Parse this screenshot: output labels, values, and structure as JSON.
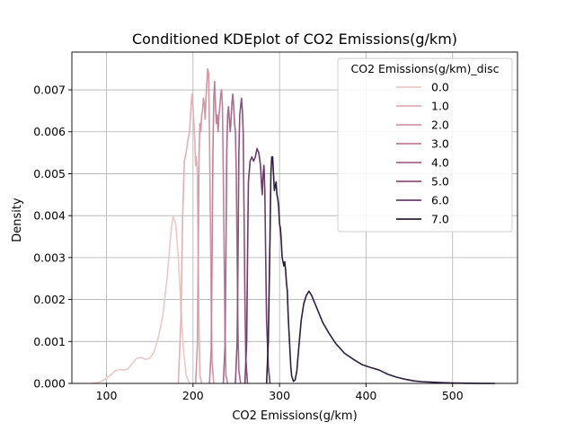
{
  "chart_data": {
    "type": "line",
    "title": "Conditioned KDEplot of CO2 Emissions(g/km)",
    "xlabel": "CO2 Emissions(g/km)",
    "ylabel": "Density",
    "xlim": [
      60,
      575
    ],
    "ylim": [
      0,
      0.0079
    ],
    "xticks": [
      100,
      200,
      300,
      400,
      500
    ],
    "xtick_labels": [
      "100",
      "200",
      "300",
      "400",
      "500"
    ],
    "yticks": [
      0,
      0.001,
      0.002,
      0.003,
      0.004,
      0.005,
      0.006,
      0.007
    ],
    "ytick_labels": [
      "0.000",
      "0.001",
      "0.002",
      "0.003",
      "0.004",
      "0.005",
      "0.006",
      "0.007"
    ],
    "grid": true,
    "legend": {
      "title": "CO2 Emissions(g/km)_disc",
      "placement": "top-right"
    },
    "series": [
      {
        "name": "0.0",
        "color": "#eccac8",
        "points": [
          [
            83,
            0
          ],
          [
            90,
            2e-05
          ],
          [
            95,
            6e-05
          ],
          [
            100,
            0.00012
          ],
          [
            105,
            0.0002
          ],
          [
            110,
            0.0003
          ],
          [
            115,
            0.00033
          ],
          [
            120,
            0.00032
          ],
          [
            125,
            0.00035
          ],
          [
            130,
            0.00048
          ],
          [
            135,
            0.0006
          ],
          [
            140,
            0.00062
          ],
          [
            145,
            0.00057
          ],
          [
            150,
            0.0006
          ],
          [
            155,
            0.00075
          ],
          [
            160,
            0.0011
          ],
          [
            165,
            0.0016
          ],
          [
            170,
            0.0025
          ],
          [
            174,
            0.0035
          ],
          [
            177,
            0.004
          ],
          [
            180,
            0.0038
          ],
          [
            183,
            0.003
          ],
          [
            186,
            0.0018
          ],
          [
            189,
            0.0008
          ],
          [
            192,
            0.0002
          ],
          [
            196,
            0
          ]
        ]
      },
      {
        "name": "1.0",
        "color": "#e1b0b4",
        "points": [
          [
            183,
            0
          ],
          [
            186,
            0.0015
          ],
          [
            188,
            0.004
          ],
          [
            190,
            0.0053
          ],
          [
            192,
            0.0055
          ],
          [
            194,
            0.0058
          ],
          [
            196,
            0.006
          ],
          [
            198,
            0.0067
          ],
          [
            199,
            0.0069
          ],
          [
            200,
            0.0066
          ],
          [
            202,
            0.0058
          ],
          [
            203,
            0.0052
          ],
          [
            204,
            0.0054
          ],
          [
            205,
            0.005
          ],
          [
            206,
            0.003
          ],
          [
            207,
            0.0012
          ],
          [
            208,
            0.0002
          ],
          [
            210,
            0
          ]
        ]
      },
      {
        "name": "2.0",
        "color": "#d498a4",
        "points": [
          [
            203,
            0
          ],
          [
            205,
            0.0009
          ],
          [
            206,
            0.003
          ],
          [
            207,
            0.0055
          ],
          [
            208,
            0.0062
          ],
          [
            209,
            0.006
          ],
          [
            210,
            0.0064
          ],
          [
            211,
            0.0065
          ],
          [
            212,
            0.0068
          ],
          [
            213,
            0.0067
          ],
          [
            214,
            0.0063
          ],
          [
            215,
            0.0068
          ],
          [
            216,
            0.0072
          ],
          [
            217,
            0.0075
          ],
          [
            218,
            0.0074
          ],
          [
            219,
            0.006
          ],
          [
            220,
            0.004
          ],
          [
            221,
            0.002
          ],
          [
            222,
            0.0005
          ],
          [
            224,
            0
          ]
        ]
      },
      {
        "name": "3.0",
        "color": "#c0819a",
        "points": [
          [
            219,
            0
          ],
          [
            221,
            0.0008
          ],
          [
            222,
            0.003
          ],
          [
            223,
            0.0055
          ],
          [
            224,
            0.0068
          ],
          [
            225,
            0.0072
          ],
          [
            226,
            0.0066
          ],
          [
            227,
            0.0062
          ],
          [
            228,
            0.0064
          ],
          [
            229,
            0.006
          ],
          [
            230,
            0.0064
          ],
          [
            231,
            0.0066
          ],
          [
            232,
            0.0069
          ],
          [
            233,
            0.007
          ],
          [
            234,
            0.0066
          ],
          [
            235,
            0.005
          ],
          [
            236,
            0.003
          ],
          [
            237,
            0.0012
          ],
          [
            238,
            0.0002
          ],
          [
            240,
            0
          ]
        ]
      },
      {
        "name": "4.0",
        "color": "#a7688d",
        "points": [
          [
            235,
            0
          ],
          [
            237,
            0.0009
          ],
          [
            238,
            0.003
          ],
          [
            239,
            0.0055
          ],
          [
            240,
            0.0064
          ],
          [
            241,
            0.0066
          ],
          [
            242,
            0.0063
          ],
          [
            243,
            0.006
          ],
          [
            244,
            0.0063
          ],
          [
            245,
            0.0067
          ],
          [
            246,
            0.0069
          ],
          [
            247,
            0.0066
          ],
          [
            248,
            0.0062
          ],
          [
            249,
            0.006
          ],
          [
            250,
            0.005
          ],
          [
            251,
            0.003
          ],
          [
            252,
            0.0012
          ],
          [
            253,
            0.0003
          ],
          [
            255,
            0
          ]
        ]
      },
      {
        "name": "5.0",
        "color": "#8c517d",
        "points": [
          [
            249,
            0
          ],
          [
            251,
            0.001
          ],
          [
            252,
            0.003
          ],
          [
            253,
            0.0055
          ],
          [
            254,
            0.0064
          ],
          [
            255,
            0.0066
          ],
          [
            256,
            0.0068
          ],
          [
            257,
            0.0065
          ],
          [
            258,
            0.006
          ],
          [
            259,
            0.004
          ],
          [
            260,
            0.002
          ],
          [
            261,
            0.0006
          ],
          [
            263,
            0
          ]
        ]
      },
      {
        "name": "6.0",
        "color": "#6c3d6b",
        "points": [
          [
            260,
            0
          ],
          [
            262,
            0.001
          ],
          [
            263,
            0.003
          ],
          [
            264,
            0.0048
          ],
          [
            266,
            0.0053
          ],
          [
            268,
            0.0054
          ],
          [
            270,
            0.0053
          ],
          [
            272,
            0.0054
          ],
          [
            274,
            0.0056
          ],
          [
            276,
            0.0055
          ],
          [
            278,
            0.0052
          ],
          [
            279,
            0.0048
          ],
          [
            280,
            0.0045
          ],
          [
            281,
            0.005
          ],
          [
            282,
            0.0052
          ],
          [
            283,
            0.0046
          ],
          [
            284,
            0.003
          ],
          [
            285,
            0.0015
          ],
          [
            287,
            0.0004
          ],
          [
            289,
            0
          ]
        ]
      },
      {
        "name": "7.0",
        "color": "#2d1e3e",
        "points": [
          [
            285,
            0
          ],
          [
            287,
            0.001
          ],
          [
            289,
            0.0035
          ],
          [
            290,
            0.005
          ],
          [
            291,
            0.0054
          ],
          [
            292,
            0.0054
          ],
          [
            293,
            0.005
          ],
          [
            294,
            0.0046
          ],
          [
            295,
            0.0047
          ],
          [
            296,
            0.0048
          ],
          [
            297,
            0.0045
          ],
          [
            298,
            0.0044
          ],
          [
            299,
            0.0042
          ],
          [
            300,
            0.0038
          ],
          [
            301,
            0.0037
          ],
          [
            302,
            0.0034
          ],
          [
            303,
            0.003
          ],
          [
            305,
            0.0028
          ],
          [
            306,
            0.0029
          ],
          [
            307,
            0.0027
          ],
          [
            308,
            0.0024
          ],
          [
            309,
            0.0022
          ],
          [
            310,
            0.0016
          ],
          [
            311,
            0.0012
          ],
          [
            312,
            0.0008
          ],
          [
            313,
            0.0004
          ],
          [
            314,
            0.00018
          ],
          [
            316,
            5e-05
          ],
          [
            318,
            8e-05
          ],
          [
            320,
            0.0003
          ],
          [
            322,
            0.0008
          ],
          [
            325,
            0.0015
          ],
          [
            328,
            0.0019
          ],
          [
            331,
            0.0021
          ],
          [
            334,
            0.0022
          ],
          [
            337,
            0.0021
          ],
          [
            341,
            0.0019
          ],
          [
            345,
            0.0017
          ],
          [
            350,
            0.00145
          ],
          [
            357,
            0.0012
          ],
          [
            365,
            0.00095
          ],
          [
            375,
            0.00072
          ],
          [
            385,
            0.00058
          ],
          [
            395,
            0.00045
          ],
          [
            405,
            0.00038
          ],
          [
            415,
            0.00032
          ],
          [
            425,
            0.00022
          ],
          [
            435,
            0.00015
          ],
          [
            445,
            0.0001
          ],
          [
            455,
            6e-05
          ],
          [
            465,
            4e-05
          ],
          [
            475,
            3e-05
          ],
          [
            485,
            2e-05
          ],
          [
            500,
            1e-05
          ],
          [
            515,
            5e-06
          ],
          [
            530,
            2e-06
          ],
          [
            549,
            0
          ]
        ]
      }
    ]
  }
}
